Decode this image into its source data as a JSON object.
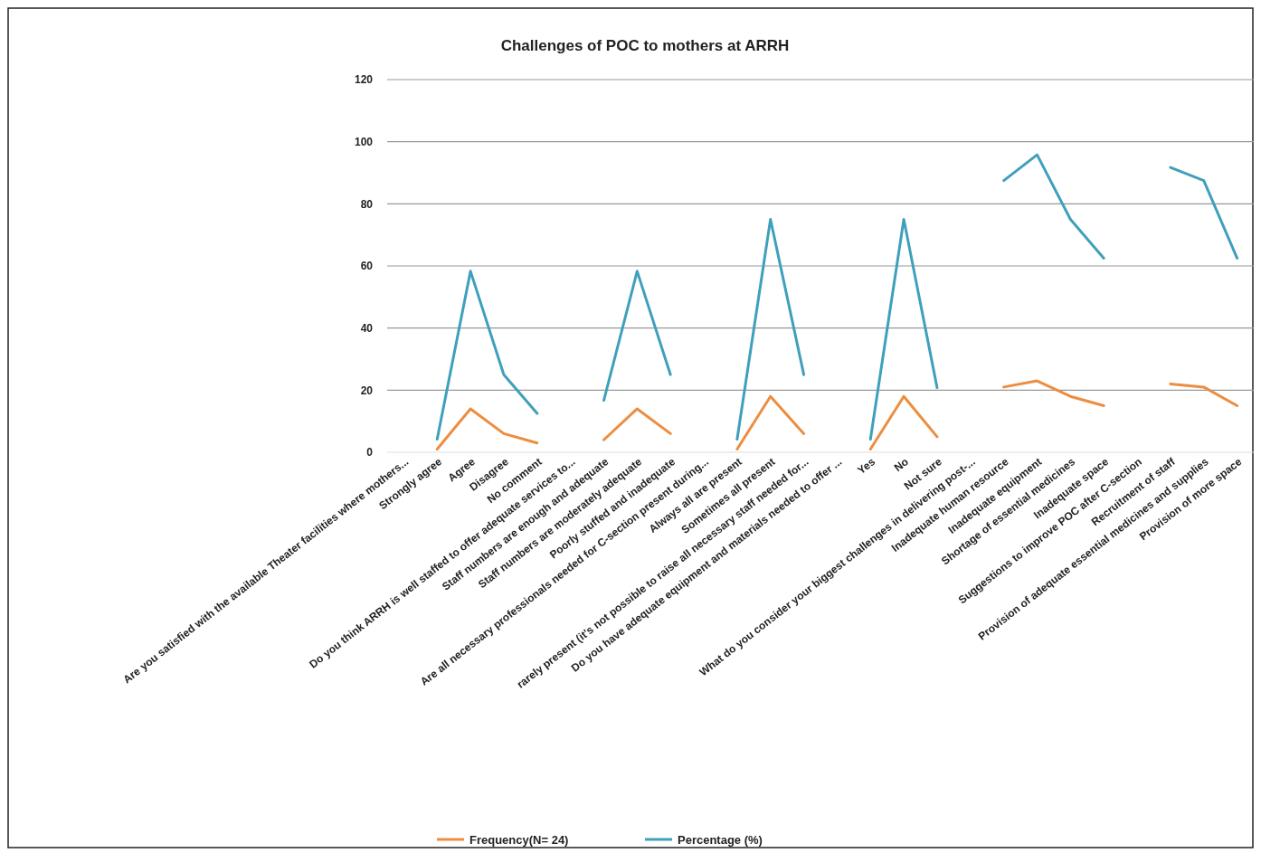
{
  "chart_data": {
    "type": "line",
    "title": "Challenges of POC to mothers at ARRH",
    "categories": [
      "Are you satisfied with the available Theater facilities where mothers...",
      "Strongly agree",
      "Agree",
      "Disagree",
      "No comment",
      "Do you think ARRH is well staffed to offer adequate services to...",
      "Staff numbers are enough and adequate",
      "Staff numbers are moderately adequate",
      "Poorly stuffed and inadequate",
      "Are all necessary professionals needed for C-section present during...",
      "Always all are present",
      "Sometimes all present",
      "rarely present (it's not possible to raise all necessary staff needed for...",
      "Do you have adequate equipment and materials needed to offer ...",
      "Yes",
      "No",
      "Not sure",
      "What do you consider your biggest challenges in delivering post-...",
      "Inadequate human resource",
      "Inadequate equipment",
      "Shortage of essential medicines",
      "Inadequate space",
      "Suggestions to improve POC after C-section",
      "Recruitment of staff",
      "Provision of adequate essential medicines and supplies",
      "Provision of more space"
    ],
    "series": [
      {
        "name": "Frequency(N= 24)",
        "color": "#ed8d3f",
        "values": [
          null,
          1,
          14,
          6,
          3,
          null,
          4,
          14,
          6,
          null,
          1,
          18,
          6,
          null,
          1,
          18,
          5,
          null,
          21,
          23,
          18,
          15,
          null,
          22,
          21,
          15
        ]
      },
      {
        "name": "Percentage (%)",
        "color": "#3fa0bb",
        "values": [
          null,
          4.2,
          58.3,
          25,
          12.5,
          null,
          16.7,
          58.3,
          25,
          null,
          4.2,
          75,
          25,
          null,
          4.2,
          75,
          20.8,
          null,
          87.5,
          95.8,
          75,
          62.5,
          null,
          91.7,
          87.5,
          62.5
        ]
      }
    ],
    "ylim": [
      0,
      120
    ],
    "yticks": [
      0,
      20,
      40,
      60,
      80,
      100,
      120
    ],
    "grid": "y",
    "legend": "bottom"
  }
}
